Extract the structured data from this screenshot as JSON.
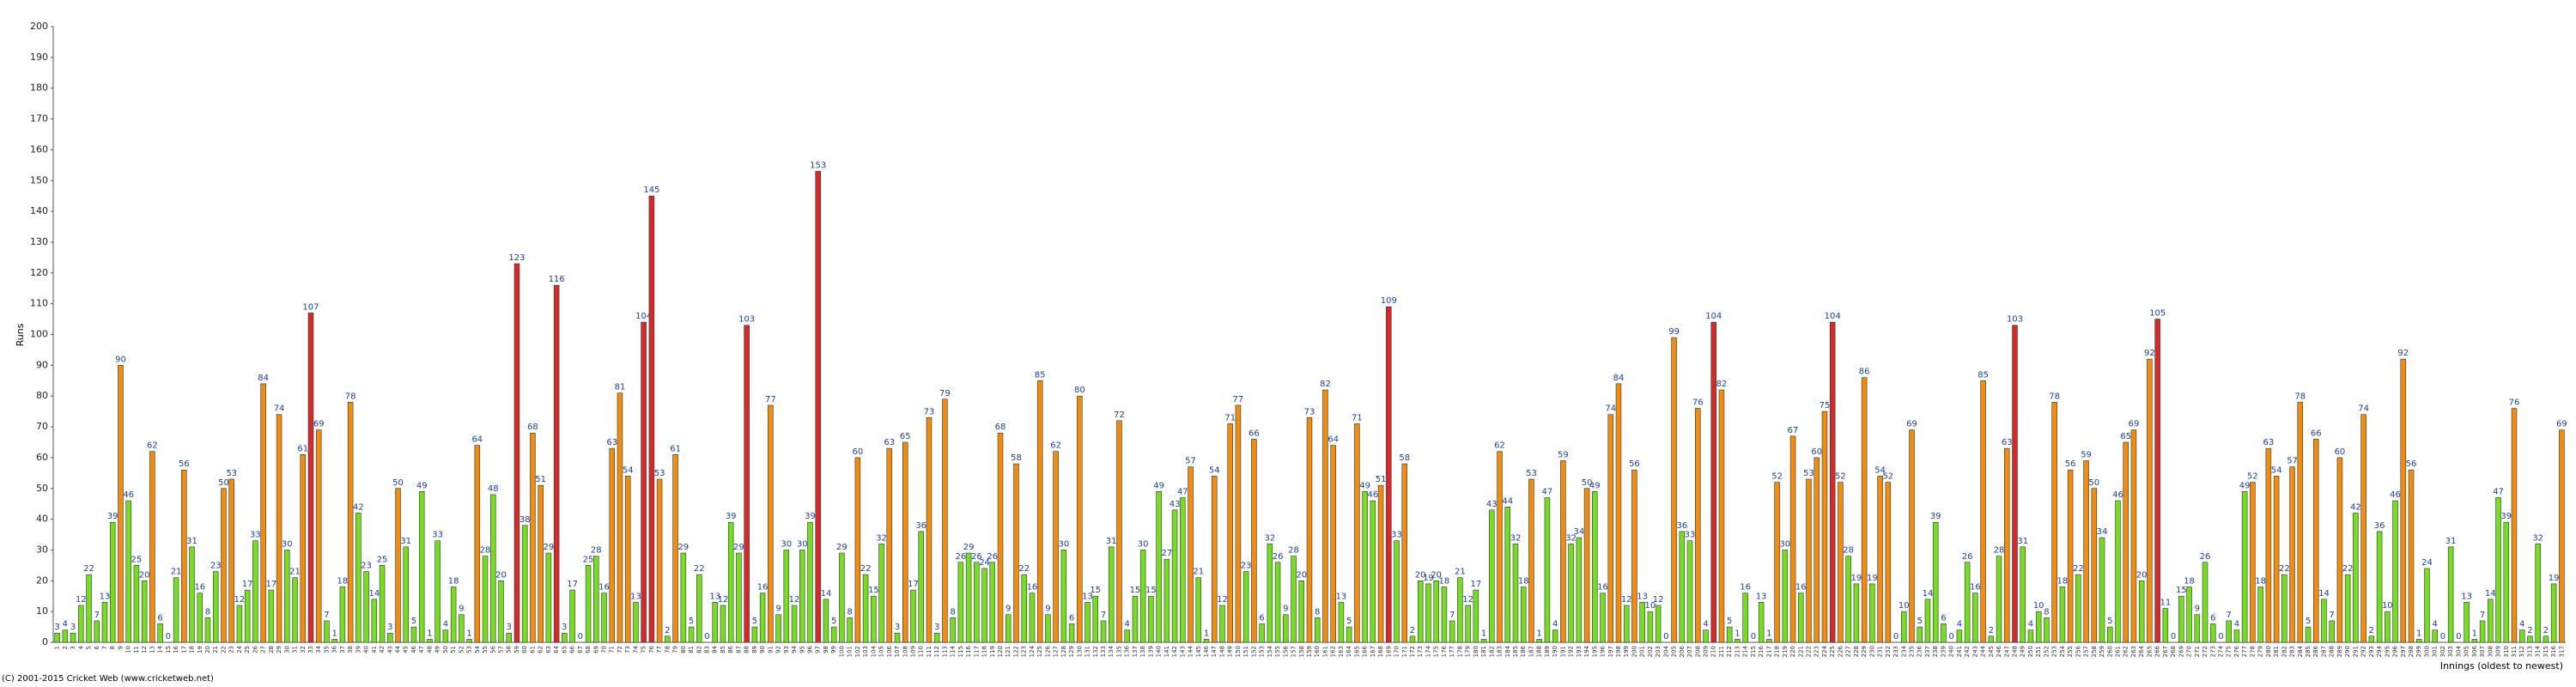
{
  "chart_data": {
    "type": "bar",
    "y_label": "Runs",
    "x_label": "Innings (oldest to newest)",
    "footer": "(C) 2001-2015 Cricket Web (www.cricketweb.net)",
    "ylim": [
      0,
      200
    ],
    "yticks": [
      0,
      10,
      20,
      30,
      40,
      50,
      60,
      70,
      80,
      90,
      100,
      110,
      120,
      130,
      140,
      150,
      160,
      170,
      180,
      190,
      200
    ],
    "grid": false,
    "color_scale": [
      {
        "from": 0,
        "color": "#77dd22"
      },
      {
        "from": 50,
        "color": "#f08c10"
      },
      {
        "from": 100,
        "color": "#d42a2a"
      }
    ],
    "categories": [
      "1",
      "2",
      "3",
      "4",
      "5",
      "6",
      "7",
      "8",
      "9",
      "10",
      "11",
      "12",
      "13",
      "14",
      "15",
      "16",
      "17",
      "18",
      "19",
      "20",
      "21",
      "22",
      "23",
      "24",
      "25",
      "26",
      "27",
      "28",
      "29",
      "30",
      "31",
      "32",
      "33",
      "34",
      "35",
      "36",
      "37",
      "38",
      "39",
      "40",
      "41",
      "42",
      "43",
      "44",
      "45",
      "46",
      "47",
      "48",
      "49",
      "50",
      "51",
      "52",
      "53",
      "54",
      "55",
      "56",
      "57",
      "58",
      "59",
      "60",
      "61",
      "62",
      "63",
      "64",
      "65",
      "66",
      "67",
      "68",
      "69",
      "70",
      "71",
      "72",
      "73",
      "74",
      "75",
      "76",
      "77",
      "78",
      "79",
      "80",
      "81",
      "82",
      "83",
      "84",
      "85",
      "86",
      "87",
      "88",
      "89",
      "90",
      "91",
      "92",
      "93",
      "94",
      "95",
      "96",
      "97",
      "98",
      "99",
      "100",
      "101",
      "102",
      "103",
      "104",
      "105",
      "106",
      "107",
      "108",
      "109",
      "110",
      "111",
      "112",
      "113",
      "114",
      "115",
      "116",
      "117",
      "118",
      "119",
      "120",
      "121",
      "122",
      "123",
      "124",
      "125",
      "126",
      "127",
      "128",
      "129",
      "130",
      "131",
      "132",
      "133",
      "134",
      "135",
      "136",
      "137",
      "138",
      "139",
      "140",
      "141",
      "142",
      "143",
      "144",
      "145",
      "146",
      "147",
      "148",
      "149",
      "150",
      "151",
      "152",
      "153",
      "154",
      "155",
      "156",
      "157",
      "158",
      "159",
      "160",
      "161",
      "162",
      "163",
      "164",
      "165",
      "166",
      "167",
      "168",
      "169",
      "170",
      "171",
      "172",
      "173",
      "174",
      "175",
      "176",
      "177",
      "178",
      "179",
      "180",
      "181",
      "182",
      "183",
      "184",
      "185",
      "186",
      "187",
      "188",
      "189",
      "190",
      "191",
      "192",
      "193",
      "194",
      "195",
      "196",
      "197",
      "198",
      "199",
      "200",
      "201",
      "202",
      "203",
      "204",
      "205",
      "206",
      "207",
      "208",
      "209",
      "210",
      "211",
      "212",
      "213",
      "214",
      "215",
      "216",
      "217",
      "218",
      "219",
      "220",
      "221",
      "222",
      "223",
      "224",
      "225",
      "226",
      "227",
      "228",
      "229",
      "230",
      "231",
      "232",
      "233",
      "234",
      "235",
      "236",
      "237",
      "238",
      "239",
      "240",
      "241",
      "242",
      "243",
      "244",
      "245",
      "246",
      "247",
      "248",
      "249",
      "250",
      "251",
      "252",
      "253",
      "254",
      "255",
      "256",
      "257",
      "258",
      "259",
      "260",
      "261",
      "262",
      "263",
      "264",
      "265",
      "266",
      "267",
      "268",
      "269",
      "270",
      "271",
      "272",
      "273",
      "274",
      "275",
      "276",
      "277",
      "278",
      "279",
      "280",
      "281",
      "282",
      "283",
      "284",
      "285",
      "286",
      "287",
      "288",
      "289",
      "290",
      "291",
      "292",
      "293",
      "294",
      "295",
      "296",
      "297",
      "298",
      "299",
      "300",
      "301",
      "302",
      "303",
      "304",
      "305",
      "306",
      "307",
      "308",
      "309",
      "310",
      "311",
      "312",
      "313",
      "314",
      "315",
      "316",
      "317"
    ],
    "values": [
      3,
      4,
      3,
      12,
      22,
      7,
      13,
      39,
      90,
      46,
      25,
      20,
      62,
      6,
      0,
      21,
      56,
      31,
      16,
      8,
      23,
      50,
      53,
      12,
      17,
      33,
      84,
      17,
      74,
      30,
      21,
      61,
      107,
      69,
      7,
      1,
      18,
      78,
      42,
      23,
      14,
      25,
      3,
      50,
      31,
      5,
      49,
      1,
      33,
      4,
      18,
      9,
      1,
      64,
      28,
      48,
      20,
      3,
      123,
      38,
      68,
      51,
      29,
      116,
      3,
      17,
      0,
      25,
      28,
      16,
      63,
      81,
      54,
      13,
      104,
      145,
      53,
      2,
      61,
      29,
      5,
      22,
      0,
      13,
      12,
      39,
      29,
      103,
      5,
      16,
      77,
      9,
      30,
      12,
      30,
      39,
      153,
      14,
      5,
      29,
      8,
      60,
      22,
      15,
      32,
      63,
      3,
      65,
      17,
      36,
      73,
      3,
      79,
      8,
      26,
      29,
      26,
      24,
      26,
      68,
      9,
      58,
      22,
      16,
      85,
      9,
      62,
      30,
      6,
      80,
      13,
      15,
      7,
      31,
      72,
      4,
      15,
      30,
      15,
      49,
      27,
      43,
      47,
      57,
      21,
      1,
      54,
      12,
      71,
      77,
      23,
      66,
      6,
      32,
      26,
      9,
      28,
      20,
      73,
      8,
      82,
      64,
      13,
      5,
      71,
      49,
      46,
      51,
      109,
      33,
      58,
      2,
      20,
      19,
      20,
      18,
      7,
      21,
      12,
      17,
      1,
      43,
      62,
      44,
      32,
      18,
      53,
      1,
      47,
      4,
      59,
      32,
      34,
      50,
      49,
      16,
      74,
      84,
      12,
      56,
      13,
      10,
      12,
      0,
      99,
      36,
      33,
      76,
      4,
      104,
      82,
      5,
      1,
      16,
      0,
      13,
      1,
      52,
      30,
      67,
      16,
      53,
      60,
      75,
      104,
      52,
      28,
      19,
      86,
      19,
      54,
      52,
      0,
      10,
      69,
      5,
      14,
      39,
      6,
      0,
      4,
      26,
      16,
      85,
      2,
      28,
      63,
      103,
      31,
      4,
      10,
      8,
      78,
      18,
      56,
      22,
      59,
      50,
      34,
      5,
      46,
      65,
      69,
      20,
      92,
      105,
      11,
      0,
      15,
      18,
      9,
      26,
      6,
      0,
      7,
      4,
      49,
      52,
      18,
      63,
      54,
      22,
      57,
      78,
      5,
      66,
      14,
      7,
      60,
      22,
      42,
      74,
      2,
      36,
      10,
      46,
      92,
      56,
      1,
      24,
      4,
      0,
      31,
      0,
      13,
      1,
      7,
      14,
      47,
      39,
      76,
      4,
      2,
      32,
      2,
      19,
      69
    ]
  }
}
